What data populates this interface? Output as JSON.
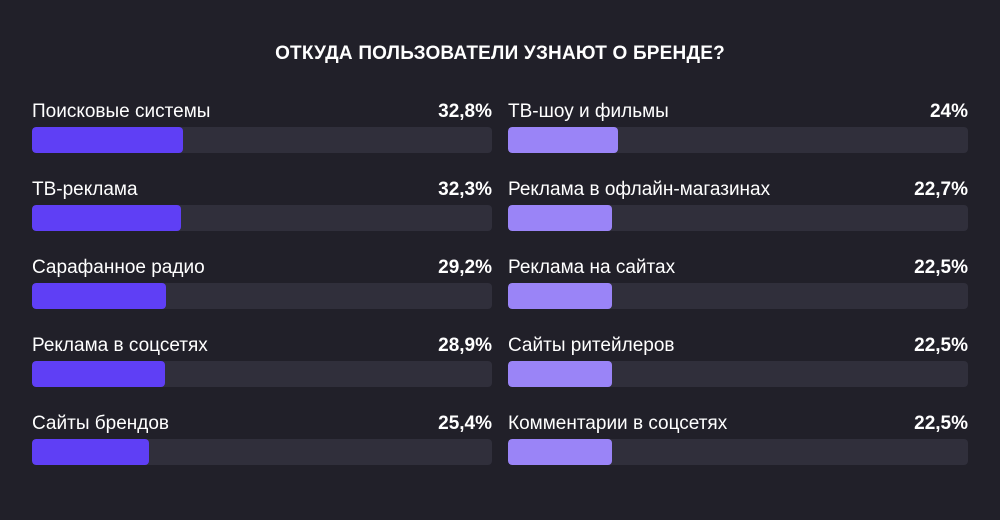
{
  "title": "ОТКУДА ПОЛЬЗОВАТЕЛИ УЗНАЮТ О БРЕНДЕ?",
  "colors": {
    "background": "#212029",
    "track": "#302f3b",
    "left_fill": "#5f3ff5",
    "right_fill": "#9a84f7"
  },
  "chart_data": {
    "type": "bar",
    "title": "ОТКУДА ПОЛЬЗОВАТЕЛИ УЗНАЮТ О БРЕНДЕ?",
    "scale_max_percent": 100,
    "left": [
      {
        "label": "Поисковые системы",
        "value": 32.8,
        "value_text": "32,8%"
      },
      {
        "label": "ТВ-реклама",
        "value": 32.3,
        "value_text": "32,3%"
      },
      {
        "label": "Сарафанное радио",
        "value": 29.2,
        "value_text": "29,2%"
      },
      {
        "label": "Реклама в соцсетях",
        "value": 28.9,
        "value_text": "28,9%"
      },
      {
        "label": "Сайты брендов",
        "value": 25.4,
        "value_text": "25,4%"
      }
    ],
    "right": [
      {
        "label": "ТВ-шоу и фильмы",
        "value": 24,
        "value_text": "24%"
      },
      {
        "label": "Реклама в офлайн-магазинах",
        "value": 22.7,
        "value_text": "22,7%"
      },
      {
        "label": "Реклама на сайтах",
        "value": 22.5,
        "value_text": "22,5%"
      },
      {
        "label": "Сайты ритейлеров",
        "value": 22.5,
        "value_text": "22,5%"
      },
      {
        "label": "Комментарии в соцсетях",
        "value": 22.5,
        "value_text": "22,5%"
      }
    ]
  }
}
